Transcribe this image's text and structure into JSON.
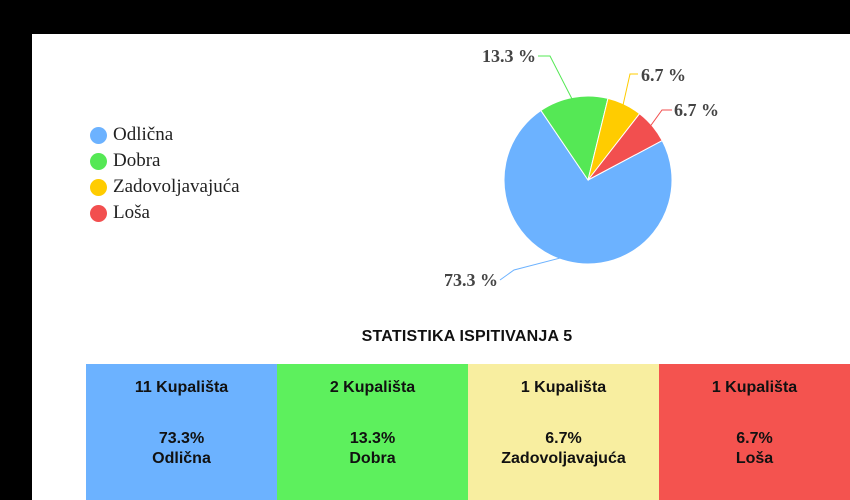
{
  "chart_data": {
    "type": "pie",
    "categories": [
      "Odlična",
      "Dobra",
      "Zadovoljavajuća",
      "Loša"
    ],
    "values": [
      73.3,
      13.3,
      6.7,
      6.7
    ],
    "slice_labels": [
      "73.3 %",
      "13.3 %",
      "6.7 %",
      "6.7 %"
    ],
    "colors": [
      "#6cb2ff",
      "#55e855",
      "#ffcc00",
      "#f24f4f"
    ],
    "legend_placement": "left"
  },
  "legend": {
    "items": [
      {
        "label": "Odlična",
        "color": "#6cb2ff"
      },
      {
        "label": "Dobra",
        "color": "#55e855"
      },
      {
        "label": "Zadovoljavajuća",
        "color": "#ffcc00"
      },
      {
        "label": "Loša",
        "color": "#f24f4f"
      }
    ]
  },
  "statistics": {
    "title": "STATISTIKA ISPITIVANJA 5",
    "boxes": [
      {
        "count": "11 Kupališta",
        "percent": "73.3%",
        "label": "Odlična",
        "color": "#6cb2ff"
      },
      {
        "count": "2 Kupališta",
        "percent": "13.3%",
        "label": "Dobra",
        "color": "#5df05d"
      },
      {
        "count": "1 Kupališta",
        "percent": "6.7%",
        "label": "Zadovoljavajuća",
        "color": "#f8eea0"
      },
      {
        "count": "1 Kupališta",
        "percent": "6.7%",
        "label": "Loša",
        "color": "#f4534f"
      }
    ]
  }
}
